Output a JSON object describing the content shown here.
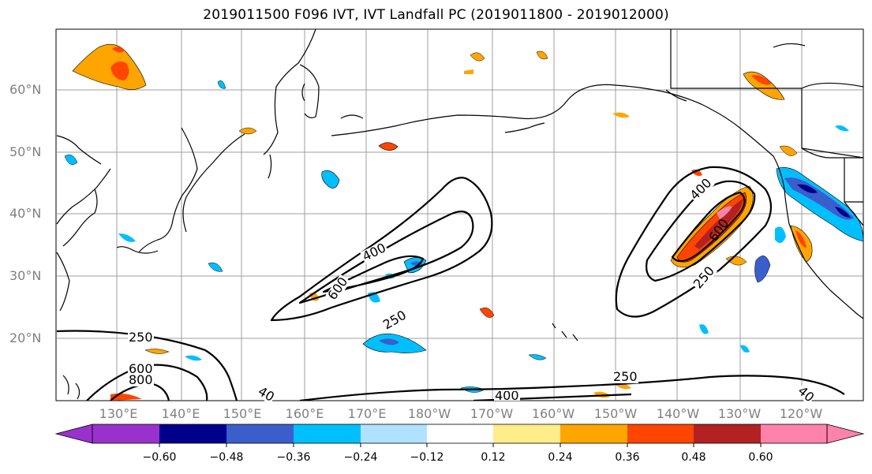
{
  "title": "2019011500 F096 IVT, IVT Landfall PC (2019011800 - 2019012000)",
  "lat_labels": [
    "60°N",
    "50°N",
    "40°N",
    "30°N",
    "20°N"
  ],
  "lon_labels": [
    "130°E",
    "140°E",
    "150°E",
    "160°E",
    "170°E",
    "180°W",
    "170°W",
    "160°W",
    "150°W",
    "140°W",
    "130°W",
    "120°W"
  ],
  "contour_labels": [
    "400",
    "600",
    "250",
    "400",
    "600",
    "250",
    "250",
    "600",
    "800",
    "40",
    "400",
    "250",
    "40"
  ],
  "colorbar": {
    "colors": [
      "#9932cc",
      "#00008b",
      "#3a5fcd",
      "#00bfff",
      "#b0e2ff",
      "#ffffff",
      "#ffec8b",
      "#ffa500",
      "#ff4500",
      "#b22222",
      "#ff82ab"
    ],
    "tick_labels": [
      "−0.60",
      "−0.48",
      "−0.36",
      "−0.24",
      "−0.12",
      "0.12",
      "0.24",
      "0.36",
      "0.48",
      "0.60"
    ]
  },
  "colors": {
    "land_outline": "#000000",
    "grid": "#808080",
    "ivt_contour": "#000000"
  }
}
